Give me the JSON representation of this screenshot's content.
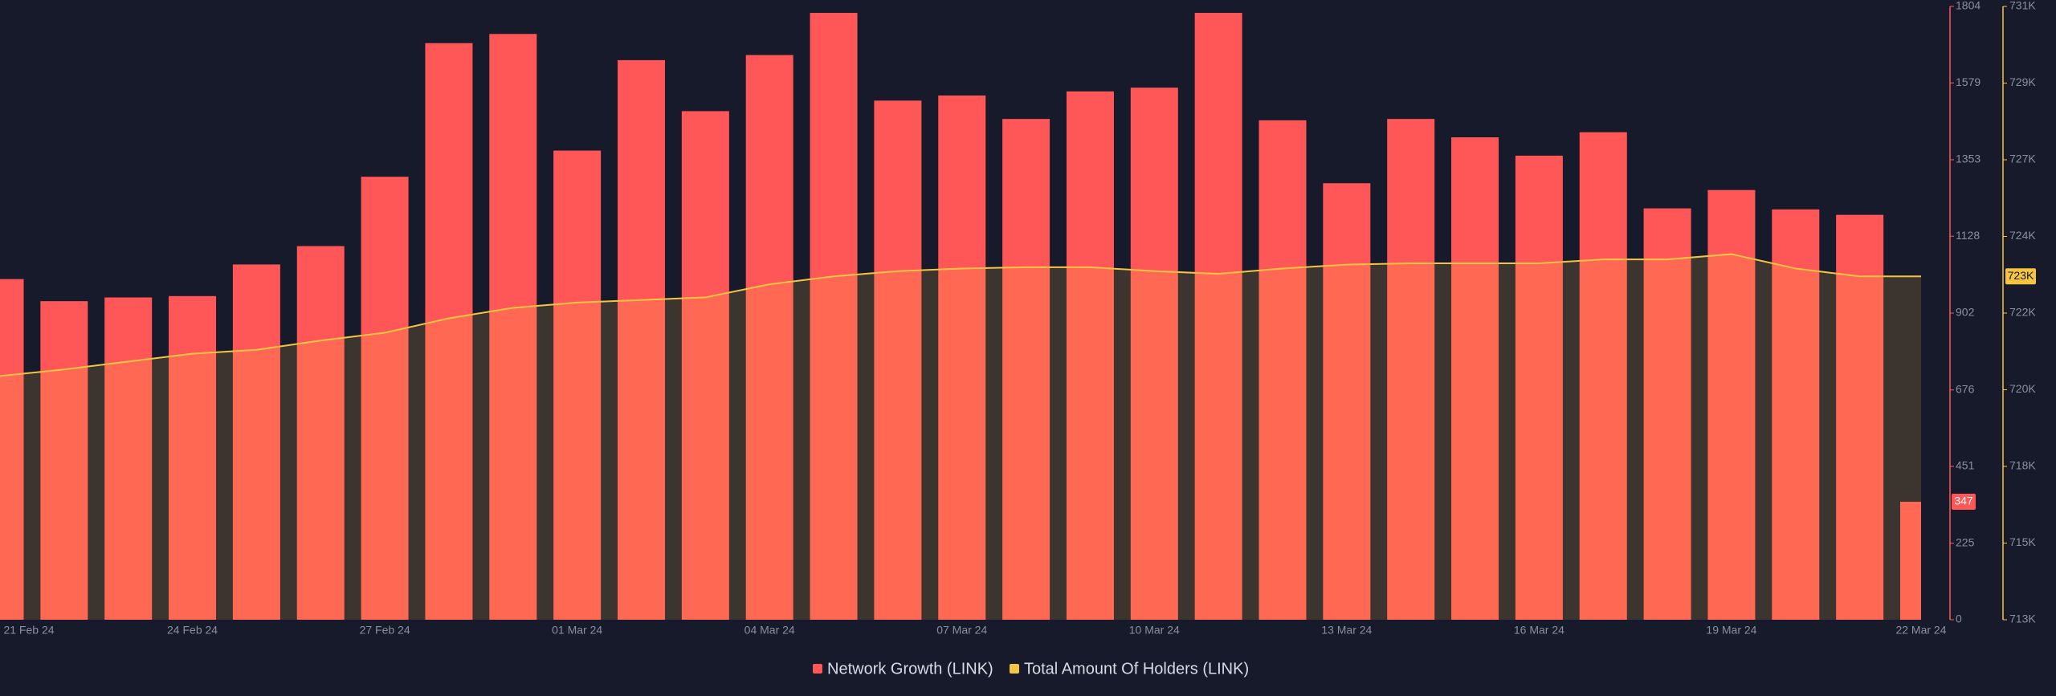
{
  "chart_data": {
    "type": "bar",
    "categories": [
      "21 Feb 24",
      null,
      null,
      "24 Feb 24",
      null,
      null,
      "27 Feb 24",
      null,
      null,
      "01 Mar 24",
      null,
      null,
      "04 Mar 24",
      null,
      null,
      "07 Mar 24",
      null,
      null,
      "10 Mar 24",
      null,
      null,
      "13 Mar 24",
      null,
      null,
      "16 Mar 24",
      null,
      null,
      "19 Mar 24",
      null,
      null,
      "22 Mar 24"
    ],
    "series": [
      {
        "name": "Network Growth (LINK)",
        "color": "#ff5757",
        "type": "bar",
        "values": [
          1002,
          937,
          948,
          952,
          1045,
          1099,
          1303,
          1696,
          1723,
          1380,
          1646,
          1496,
          1661,
          1785,
          1527,
          1542,
          1473,
          1554,
          1565,
          1785,
          1469,
          1284,
          1473,
          1419,
          1365,
          1434,
          1210,
          1264,
          1207,
          1191,
          347
        ]
      },
      {
        "name": "Total Amount Of Holders (LINK)",
        "color": "#f5c542",
        "type": "line",
        "axis": "y2",
        "values": [
          720154,
          720346,
          720577,
          720807,
          720923,
          721192,
          721423,
          721846,
          722154,
          722308,
          722384,
          722461,
          722846,
          723077,
          723230,
          723307,
          723346,
          723346,
          723230,
          723153,
          723307,
          723423,
          723461,
          723461,
          723461,
          723577,
          723577,
          723730,
          723307,
          723077,
          723077
        ],
        "value_labels": [
          null,
          null,
          null,
          null,
          null,
          null,
          null,
          null,
          null,
          null,
          null,
          null,
          null,
          null,
          null,
          null,
          null,
          null,
          null,
          null,
          null,
          null,
          null,
          null,
          null,
          null,
          null,
          null,
          null,
          null,
          "723K"
        ]
      }
    ],
    "ylim": [
      0,
      1804
    ],
    "yticks": [
      0,
      225,
      451,
      676,
      902,
      1128,
      1353,
      1579,
      1804
    ],
    "y2lim": [
      713000,
      731000
    ],
    "y2ticks": [
      {
        "value": 713000,
        "label": "713K"
      },
      {
        "value": 715250,
        "label": "715K"
      },
      {
        "value": 717500,
        "label": "718K"
      },
      {
        "value": 719750,
        "label": "720K"
      },
      {
        "value": 722000,
        "label": "722K"
      },
      {
        "value": 724250,
        "label": "724K"
      },
      {
        "value": 726500,
        "label": "727K"
      },
      {
        "value": 728750,
        "label": "729K"
      },
      {
        "value": 731000,
        "label": "731K"
      }
    ],
    "grid": false
  }
}
